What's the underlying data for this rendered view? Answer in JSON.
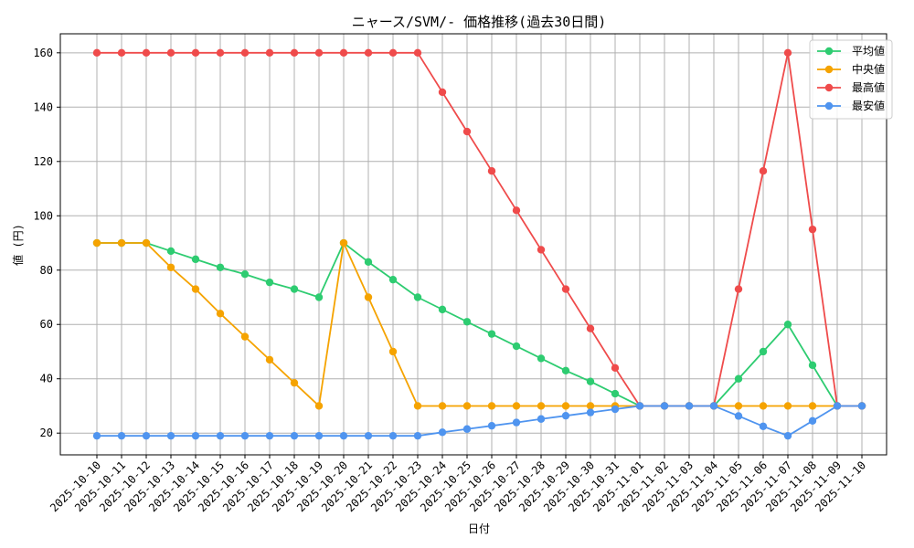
{
  "chart_data": {
    "type": "line",
    "title": "ニャース/SVM/- 価格推移(過去30日間)",
    "xlabel": "日付",
    "ylabel": "値 (円)",
    "ylim": [
      12,
      167
    ],
    "yticks": [
      20,
      40,
      60,
      80,
      100,
      120,
      140,
      160
    ],
    "grid": true,
    "legend_position": "top-right",
    "categories": [
      "2025-10-10",
      "2025-10-11",
      "2025-10-12",
      "2025-10-13",
      "2025-10-14",
      "2025-10-15",
      "2025-10-16",
      "2025-10-17",
      "2025-10-18",
      "2025-10-19",
      "2025-10-20",
      "2025-10-21",
      "2025-10-22",
      "2025-10-23",
      "2025-10-24",
      "2025-10-25",
      "2025-10-26",
      "2025-10-27",
      "2025-10-28",
      "2025-10-29",
      "2025-10-30",
      "2025-10-31",
      "2025-11-01",
      "2025-11-02",
      "2025-11-03",
      "2025-11-04",
      "2025-11-05",
      "2025-11-06",
      "2025-11-07",
      "2025-11-08",
      "2025-11-09",
      "2025-11-10"
    ],
    "series": [
      {
        "name": "平均値",
        "color": "#2ecc71",
        "values": [
          90,
          90,
          90,
          87,
          84,
          81,
          78.5,
          75.5,
          73,
          70,
          90,
          83,
          76.5,
          70,
          65.5,
          61,
          56.5,
          52,
          47.5,
          43,
          39,
          34.5,
          30,
          30,
          30,
          30,
          40,
          50,
          60,
          45,
          30,
          30
        ]
      },
      {
        "name": "中央値",
        "color": "#f5a300",
        "values": [
          90,
          90,
          90,
          81,
          73,
          64,
          55.5,
          47,
          38.5,
          30,
          90,
          70,
          50,
          30,
          30,
          30,
          30,
          30,
          30,
          30,
          30,
          30,
          30,
          30,
          30,
          30,
          30,
          30,
          30,
          30,
          30,
          30
        ]
      },
      {
        "name": "最高値",
        "color": "#ef4b4b",
        "values": [
          160,
          160,
          160,
          160,
          160,
          160,
          160,
          160,
          160,
          160,
          160,
          160,
          160,
          160,
          145.5,
          131,
          116.5,
          102,
          87.5,
          73,
          58.5,
          44,
          30,
          30,
          30,
          30,
          73,
          116.5,
          160,
          95,
          30,
          30
        ]
      },
      {
        "name": "最安値",
        "color": "#4f94ef",
        "values": [
          19,
          19,
          19,
          19,
          19,
          19,
          19,
          19,
          19,
          19,
          19,
          19,
          19,
          19,
          20.3,
          21.5,
          22.7,
          23.9,
          25.2,
          26.4,
          27.6,
          28.8,
          30,
          30,
          30,
          30,
          26.3,
          22.5,
          19,
          24.5,
          30,
          30
        ]
      }
    ]
  }
}
